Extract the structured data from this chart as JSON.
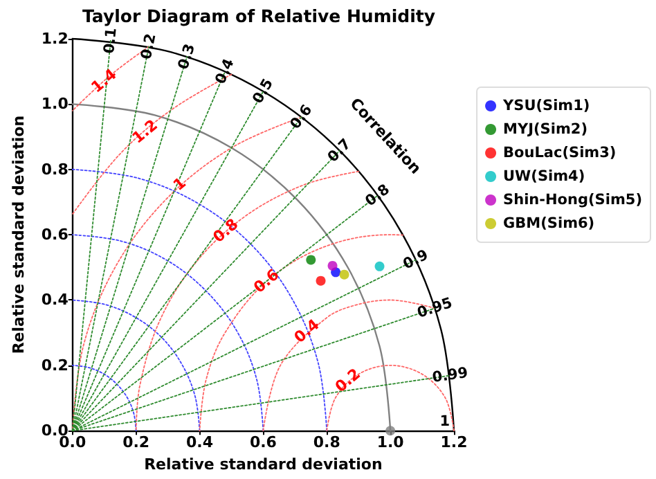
{
  "chart_data": {
    "type": "scatter",
    "title": "Taylor Diagram of Relative Humidity",
    "xlabel": "Relative standard deviation",
    "ylabel": "Relative standard deviation",
    "xlim": [
      0,
      1.2
    ],
    "ylim": [
      0,
      1.2
    ],
    "xticks": [
      {
        "value": 0,
        "label": "0.0"
      },
      {
        "value": 0.2,
        "label": "0.2"
      },
      {
        "value": 0.4,
        "label": "0.4"
      },
      {
        "value": 0.6,
        "label": "0.6"
      },
      {
        "value": 0.8,
        "label": "0.8"
      },
      {
        "value": 1,
        "label": "1.0"
      },
      {
        "value": 1.2,
        "label": "1.2"
      }
    ],
    "yticks": [
      {
        "value": 0,
        "label": "0.0"
      },
      {
        "value": 0.2,
        "label": "0.2"
      },
      {
        "value": 0.4,
        "label": "0.4"
      },
      {
        "value": 0.6,
        "label": "0.6"
      },
      {
        "value": 0.8,
        "label": "0.8"
      },
      {
        "value": 1,
        "label": "1.0"
      },
      {
        "value": 1.2,
        "label": "1.2"
      }
    ],
    "series": [
      {
        "name": "YSU(Sim1)",
        "color": "#0000ff",
        "marker": "circle",
        "x": [
          0.828
        ],
        "values": [
          0.485
        ]
      },
      {
        "name": "MYJ(Sim2)",
        "color": "#008000",
        "marker": "circle",
        "x": [
          0.75
        ],
        "values": [
          0.523
        ]
      },
      {
        "name": "BouLac(Sim3)",
        "color": "#ff0000",
        "marker": "circle",
        "x": [
          0.781
        ],
        "values": [
          0.459
        ]
      },
      {
        "name": "UW(Sim4)",
        "color": "#00bfbf",
        "marker": "circle",
        "x": [
          0.966
        ],
        "values": [
          0.503
        ]
      },
      {
        "name": "Shin-Hong(Sim5)",
        "color": "#bf00bf",
        "marker": "circle",
        "x": [
          0.818
        ],
        "values": [
          0.505
        ]
      },
      {
        "name": "GBM(Sim6)",
        "color": "#bfbf00",
        "marker": "circle",
        "x": [
          0.855
        ],
        "values": [
          0.478
        ]
      },
      {
        "color": "#808080",
        "marker": "circle",
        "x": [
          1
        ],
        "values": [
          0
        ]
      },
      {
        "type": "line",
        "color": "#4040ff",
        "line_style": "dotted",
        "marker": "none",
        "x": [
          0.2,
          0.193,
          0.173,
          0.141,
          0.1,
          0.052,
          0
        ],
        "values": [
          0,
          0.052,
          0.1,
          0.141,
          0.173,
          0.193,
          0.2
        ]
      },
      {
        "type": "line",
        "color": "#4040ff",
        "line_style": "dotted",
        "marker": "none",
        "x": [
          0.4,
          0.386,
          0.346,
          0.283,
          0.2,
          0.104,
          0
        ],
        "values": [
          0,
          0.104,
          0.2,
          0.283,
          0.346,
          0.386,
          0.4
        ]
      },
      {
        "type": "line",
        "color": "#4040ff",
        "line_style": "dotted",
        "marker": "none",
        "x": [
          0.6,
          0.58,
          0.52,
          0.424,
          0.3,
          0.155,
          0
        ],
        "values": [
          0,
          0.155,
          0.3,
          0.424,
          0.52,
          0.58,
          0.6
        ]
      },
      {
        "type": "line",
        "color": "#4040ff",
        "line_style": "dotted",
        "marker": "none",
        "x": [
          0.8,
          0.773,
          0.693,
          0.566,
          0.4,
          0.207,
          0
        ],
        "values": [
          0,
          0.207,
          0.4,
          0.566,
          0.693,
          0.773,
          0.8
        ]
      },
      {
        "type": "line",
        "color": "#808080",
        "line_style": "solid",
        "marker": "none",
        "x": [
          1,
          0.966,
          0.866,
          0.707,
          0.5,
          0.259,
          0
        ],
        "values": [
          0,
          0.259,
          0.5,
          0.707,
          0.866,
          0.966,
          1
        ]
      },
      {
        "type": "line",
        "color": "#000000",
        "line_style": "solid",
        "marker": "none",
        "x": [
          1.2,
          1.159,
          1.039,
          0.849,
          0.6,
          0.311,
          0
        ],
        "values": [
          0,
          0.311,
          0.6,
          0.849,
          1.039,
          1.159,
          1.2
        ]
      },
      {
        "type": "line",
        "color": "#ff6666",
        "line_style": "dotted",
        "marker": "none",
        "x": [
          1.2,
          1.173,
          1.1,
          1,
          0.9,
          0.827,
          0.8
        ],
        "values": [
          0,
          0.1,
          0.173,
          0.2,
          0.173,
          0.1,
          0
        ]
      },
      {
        "type": "line",
        "color": "#ff6666",
        "line_style": "dotted",
        "marker": "none",
        "x": [
          1.14,
          1,
          0.896,
          0.8,
          0.654,
          0.6
        ],
        "values": [
          0.375,
          0.4,
          0.386,
          0.346,
          0.2,
          0
        ]
      },
      {
        "type": "line",
        "color": "#ff6666",
        "line_style": "dotted",
        "marker": "none",
        "x": [
          1.04,
          1,
          0.795,
          0.614,
          0.48,
          0.42,
          0.4
        ],
        "values": [
          0.599,
          0.6,
          0.564,
          0.46,
          0.3,
          0.155,
          0
        ]
      },
      {
        "type": "line",
        "color": "#ff6666",
        "line_style": "dotted",
        "marker": "none",
        "x": [
          0.9,
          0.726,
          0.541,
          0.387,
          0.275,
          0.212,
          0.2
        ],
        "values": [
          0.794,
          0.752,
          0.655,
          0.514,
          0.338,
          0.139,
          0
        ]
      },
      {
        "type": "line",
        "color": "#ff6666",
        "line_style": "dotted",
        "marker": "none",
        "x": [
          0.72,
          0.5,
          0.293,
          0.134,
          0.034,
          0
        ],
        "values": [
          0.96,
          0.866,
          0.707,
          0.5,
          0.259,
          0
        ]
      },
      {
        "type": "line",
        "color": "#ff6666",
        "line_style": "dotted",
        "marker": "none",
        "x": [
          0.5,
          0.312,
          0.151,
          0
        ],
        "values": [
          1.091,
          0.983,
          0.849,
          0.663
        ]
      },
      {
        "type": "line",
        "color": "#ff6666",
        "line_style": "dotted",
        "marker": "none",
        "x": [
          0.24,
          0.119,
          0
        ],
        "values": [
          1.176,
          1.088,
          0.98
        ]
      },
      {
        "type": "line",
        "color": "#2e8b2e",
        "line_style": "dotted",
        "x": [
          0,
          0.12
        ],
        "values": [
          0,
          1.194
        ]
      },
      {
        "type": "line",
        "color": "#2e8b2e",
        "line_style": "dotted",
        "x": [
          0,
          0.24
        ],
        "values": [
          0,
          1.176
        ]
      },
      {
        "type": "line",
        "color": "#2e8b2e",
        "line_style": "dotted",
        "x": [
          0,
          0.36
        ],
        "values": [
          0,
          1.145
        ]
      },
      {
        "type": "line",
        "color": "#2e8b2e",
        "line_style": "dotted",
        "x": [
          0,
          0.48
        ],
        "values": [
          0,
          1.1
        ]
      },
      {
        "type": "line",
        "color": "#2e8b2e",
        "line_style": "dotted",
        "x": [
          0,
          0.6
        ],
        "values": [
          0,
          1.039
        ]
      },
      {
        "type": "line",
        "color": "#2e8b2e",
        "line_style": "dotted",
        "x": [
          0,
          0.72
        ],
        "values": [
          0,
          0.96
        ]
      },
      {
        "type": "line",
        "color": "#2e8b2e",
        "line_style": "dotted",
        "x": [
          0,
          0.84
        ],
        "values": [
          0,
          0.857
        ]
      },
      {
        "type": "line",
        "color": "#2e8b2e",
        "line_style": "dotted",
        "x": [
          0,
          0.96
        ],
        "values": [
          0,
          0.72
        ]
      },
      {
        "type": "line",
        "color": "#2e8b2e",
        "line_style": "dotted",
        "x": [
          0,
          1.08
        ],
        "values": [
          0,
          0.523
        ]
      },
      {
        "type": "line",
        "color": "#2e8b2e",
        "line_style": "dotted",
        "x": [
          0,
          1.14
        ],
        "values": [
          0,
          0.375
        ]
      },
      {
        "type": "line",
        "color": "#2e8b2e",
        "line_style": "dotted",
        "x": [
          0,
          1.188
        ],
        "values": [
          0,
          0.169
        ]
      }
    ],
    "annotations": [
      "Correlation",
      {
        "text": "0.1",
        "x": 0.12,
        "y": 1.194
      },
      {
        "text": "0.2",
        "x": 0.24,
        "y": 1.176
      },
      {
        "text": "0.3",
        "x": 0.36,
        "y": 1.145
      },
      {
        "text": "0.4",
        "x": 0.48,
        "y": 1.1
      },
      {
        "text": "0.5",
        "x": 0.6,
        "y": 1.039
      },
      {
        "text": "0.6",
        "x": 0.72,
        "y": 0.96
      },
      {
        "text": "0.7",
        "x": 0.84,
        "y": 0.857
      },
      {
        "text": "0.8",
        "x": 0.96,
        "y": 0.72
      },
      {
        "text": "0.9",
        "x": 1.08,
        "y": 0.523
      },
      {
        "text": "0.95",
        "x": 1.14,
        "y": 0.375
      },
      {
        "text": "0.99",
        "x": 1.188,
        "y": 0.169
      },
      {
        "text": "1",
        "x": 1.2,
        "y": 0
      },
      {
        "text": "0.2",
        "x": 0.866,
        "y": 0.154
      },
      {
        "text": "0.4",
        "x": 0.737,
        "y": 0.305
      },
      {
        "text": "0.6",
        "x": 0.61,
        "y": 0.458
      },
      {
        "text": "0.8",
        "x": 0.482,
        "y": 0.612
      },
      {
        "text": "1",
        "x": 0.337,
        "y": 0.755
      },
      {
        "text": "1.2",
        "x": 0.228,
        "y": 0.916
      },
      {
        "text": "1.4",
        "x": 0.099,
        "y": 1.071
      }
    ],
    "legend": "right"
  }
}
